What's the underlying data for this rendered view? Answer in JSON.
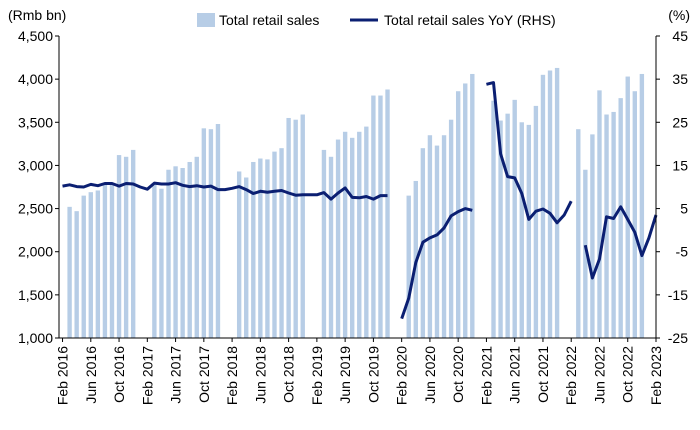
{
  "chart_data": {
    "type": "bar+line",
    "title": "",
    "left_axis_label": "(Rmb bn)",
    "right_axis_label": "(%)",
    "left_ylim": [
      1000,
      4500
    ],
    "left_ticks": [
      "1,000",
      "1,500",
      "2,000",
      "2,500",
      "3,000",
      "3,500",
      "4,000",
      "4,500"
    ],
    "left_tick_values": [
      1000,
      1500,
      2000,
      2500,
      3000,
      3500,
      4000,
      4500
    ],
    "right_ylim": [
      -25,
      45
    ],
    "right_ticks": [
      "-25",
      "-15",
      "-5",
      "5",
      "15",
      "25",
      "35",
      "45"
    ],
    "right_tick_values": [
      -25,
      -15,
      -5,
      5,
      15,
      25,
      35,
      45
    ],
    "negative_color": "#e8291c",
    "bar_color": "#b7cde6",
    "line_color": "#0b1f72",
    "x_ticks": [
      {
        "label": "Feb 2016",
        "index": 0
      },
      {
        "label": "Jun 2016",
        "index": 4
      },
      {
        "label": "Oct 2016",
        "index": 8
      },
      {
        "label": "Feb 2017",
        "index": 12
      },
      {
        "label": "Jun 2017",
        "index": 16
      },
      {
        "label": "Oct 2017",
        "index": 20
      },
      {
        "label": "Feb 2018",
        "index": 24
      },
      {
        "label": "Jun 2018",
        "index": 28
      },
      {
        "label": "Oct 2018",
        "index": 32
      },
      {
        "label": "Feb 2019",
        "index": 36
      },
      {
        "label": "Jun 2019",
        "index": 40
      },
      {
        "label": "Oct 2019",
        "index": 44
      },
      {
        "label": "Feb 2020",
        "index": 48
      },
      {
        "label": "Jun 2020",
        "index": 52
      },
      {
        "label": "Oct 2020",
        "index": 56
      },
      {
        "label": "Feb 2021",
        "index": 60
      },
      {
        "label": "Jun 2021",
        "index": 64
      },
      {
        "label": "Oct 2021",
        "index": 68
      },
      {
        "label": "Feb 2022",
        "index": 72
      },
      {
        "label": "Jun 2022",
        "index": 76
      },
      {
        "label": "Oct 2022",
        "index": 80
      },
      {
        "label": "Feb 2023",
        "index": 84
      }
    ],
    "series": [
      {
        "name": "Total retail sales",
        "type": "bar",
        "axis": "left",
        "values": [
          null,
          2520,
          2470,
          2650,
          2690,
          2710,
          2790,
          2800,
          3120,
          3100,
          3180,
          null,
          null,
          2780,
          2730,
          2950,
          2990,
          2970,
          3040,
          3100,
          3430,
          3420,
          3480,
          null,
          null,
          2930,
          2860,
          3040,
          3080,
          3070,
          3160,
          3200,
          3550,
          3530,
          3590,
          null,
          null,
          3180,
          3100,
          3300,
          3390,
          3320,
          3390,
          3450,
          3810,
          3810,
          3880,
          null,
          null,
          2650,
          2820,
          3200,
          3350,
          3230,
          3350,
          3530,
          3860,
          3950,
          4060,
          null,
          null,
          3750,
          3520,
          3600,
          3760,
          3500,
          3470,
          3690,
          4050,
          4100,
          4130,
          null,
          null,
          3420,
          2950,
          3360,
          3870,
          3590,
          3620,
          3780,
          4030,
          3860,
          4060,
          null,
          null
        ]
      },
      {
        "name": "Total retail sales YoY (RHS)",
        "type": "line",
        "axis": "right",
        "values": [
          10.2,
          10.5,
          10.1,
          10.0,
          10.6,
          10.3,
          10.8,
          10.8,
          10.2,
          10.8,
          10.7,
          10.0,
          9.5,
          10.9,
          10.7,
          10.7,
          11.0,
          10.4,
          10.1,
          10.3,
          10.0,
          10.2,
          9.4,
          9.4,
          9.7,
          10.1,
          9.4,
          8.5,
          9.0,
          8.8,
          9.0,
          9.2,
          8.6,
          8.1,
          8.2,
          8.2,
          8.2,
          8.7,
          7.2,
          8.6,
          9.8,
          7.6,
          7.5,
          7.8,
          7.2,
          8.0,
          8.0,
          null,
          -20.5,
          -15.8,
          -7.5,
          -2.8,
          -1.8,
          -1.1,
          0.5,
          3.3,
          4.3,
          5.0,
          4.6,
          null,
          33.8,
          34.2,
          17.7,
          12.4,
          12.1,
          8.5,
          2.5,
          4.4,
          4.9,
          3.9,
          1.7,
          3.5,
          6.7,
          null,
          -3.5,
          -11.1,
          -6.7,
          3.1,
          2.7,
          5.4,
          2.5,
          -0.5,
          -5.9,
          -1.8,
          3.5
        ]
      }
    ]
  },
  "legend": {
    "bars_label": "Total retail sales",
    "line_label": "Total retail sales YoY (RHS)"
  }
}
